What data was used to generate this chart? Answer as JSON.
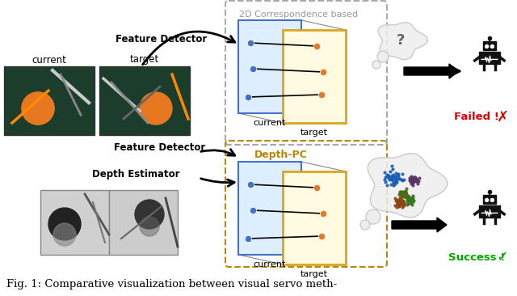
{
  "title": "Fig. 1: Comparative visualization between visual servo meth-",
  "background_color": "#ffffff",
  "top_label": "2D Correspondence based",
  "bottom_label": "Depth-PC",
  "failed_text": "Failed !",
  "success_text": "Success !",
  "current_text": "current",
  "target_text": "target",
  "feature_detector_text": "Feature Detector",
  "depth_estimator_text": "Depth Estimator",
  "image_current_label": "current",
  "image_target_label": "target",
  "blue_color": "#4472C4",
  "orange_color": "#E87722",
  "red_color": "#DD0000",
  "green_color": "#00AA00",
  "dark_gold_color": "#B8860B",
  "gray_color": "#999999",
  "robot_color": "#111111"
}
